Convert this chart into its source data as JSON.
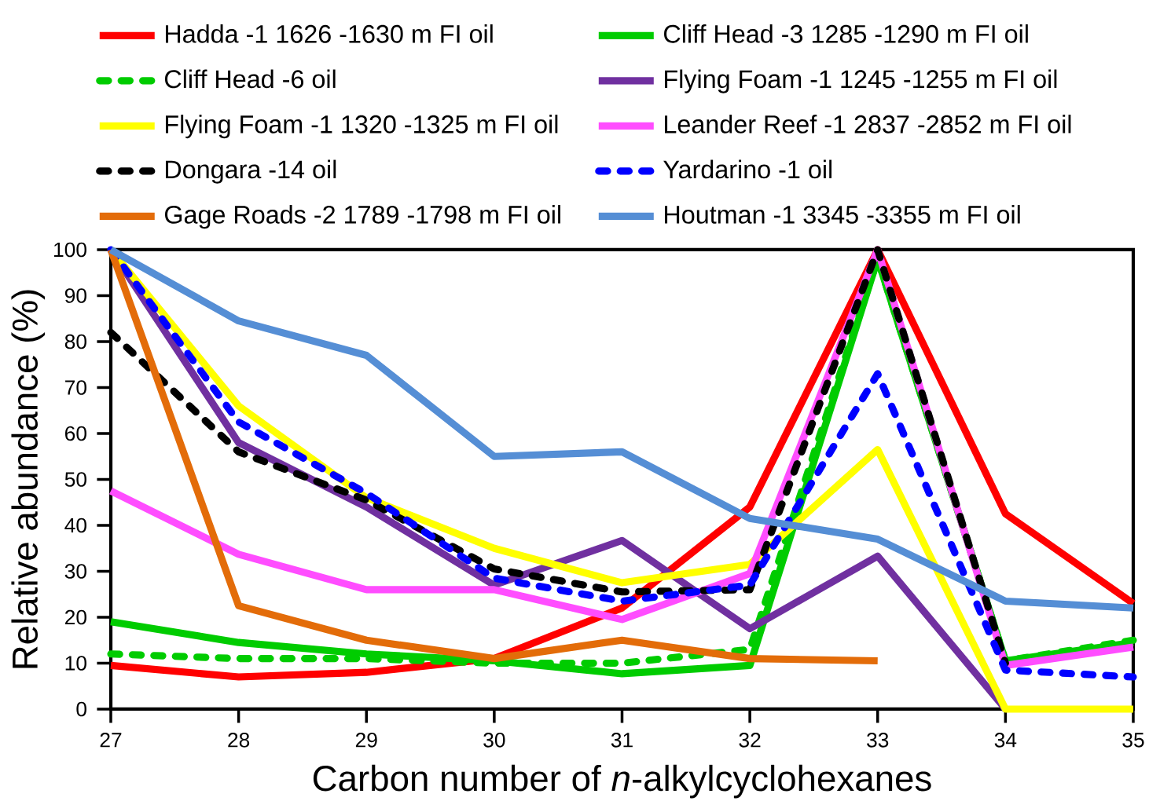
{
  "chart_data": {
    "type": "line",
    "xlabel": "Carbon number of *n*-alkylcyclohexanes",
    "ylabel": "Relative abundance (%)",
    "x": [
      27,
      28,
      29,
      30,
      31,
      32,
      33,
      34,
      35
    ],
    "xlim": [
      27,
      35
    ],
    "xticks": [
      27,
      28,
      29,
      30,
      31,
      32,
      33,
      34,
      35
    ],
    "ylim": [
      0,
      100
    ],
    "yticks": [
      0,
      10,
      20,
      30,
      40,
      50,
      60,
      70,
      80,
      90,
      100
    ],
    "grid": false,
    "legend": "top",
    "marker": "none",
    "line_style": "solid",
    "series": [
      {
        "name": "Hadda -1 1626 -1630 m FI oil",
        "color": "#ff0000",
        "values": [
          9.5,
          7,
          8,
          11,
          22,
          44,
          100,
          42.5,
          23
        ]
      },
      {
        "name": "Cliff Head -3 1285 -1290 m FI oil",
        "color": "#00cc00",
        "values": [
          19,
          14.5,
          12,
          10.5,
          7.7,
          9.5,
          98,
          10.5,
          14.5
        ]
      },
      {
        "name": "Cliff Head -6 oil",
        "color": "#00cc00",
        "line_style": "dashed",
        "values": [
          12,
          11,
          11,
          10,
          10,
          13,
          98,
          10.5,
          15
        ]
      },
      {
        "name": "Flying Foam -1 1245 -1255 m FI oil",
        "color": "#7030a0",
        "values": [
          100,
          58,
          44,
          27,
          36.7,
          17.5,
          33.3,
          0,
          null
        ]
      },
      {
        "name": "Flying Foam -1 1320 -1325 m FI oil",
        "color": "#ffff00",
        "values": [
          100,
          66,
          46,
          35,
          27.5,
          31.5,
          56.5,
          0,
          0
        ]
      },
      {
        "name": "Leander Reef -1 2837  -2852 m FI oil",
        "color": "#ff4dff",
        "values": [
          47.5,
          33.7,
          26,
          26,
          19.5,
          29.5,
          100,
          9.5,
          13.5
        ]
      },
      {
        "name": "Dongara -14 oil",
        "color": "#000000",
        "line_style": "dashed",
        "values": [
          82,
          56,
          45.5,
          30.5,
          25.5,
          26,
          100,
          10,
          null
        ]
      },
      {
        "name": "Yardarino -1 oil",
        "color": "#0000ff",
        "line_style": "dashed",
        "values": [
          100,
          62.5,
          47,
          28.5,
          23.5,
          27,
          73,
          8.5,
          7
        ]
      },
      {
        "name": "Gage Roads -2 1789 -1798 m FI oil",
        "color": "#e36c09",
        "values": [
          100,
          22.5,
          15,
          11,
          15,
          11,
          10.5,
          null,
          null
        ]
      },
      {
        "name": "Houtman -1 3345 -3355 m FI oil",
        "color": "#558ed5",
        "values": [
          100,
          84.5,
          77,
          55,
          56,
          41.5,
          37,
          23.5,
          22
        ]
      }
    ]
  }
}
